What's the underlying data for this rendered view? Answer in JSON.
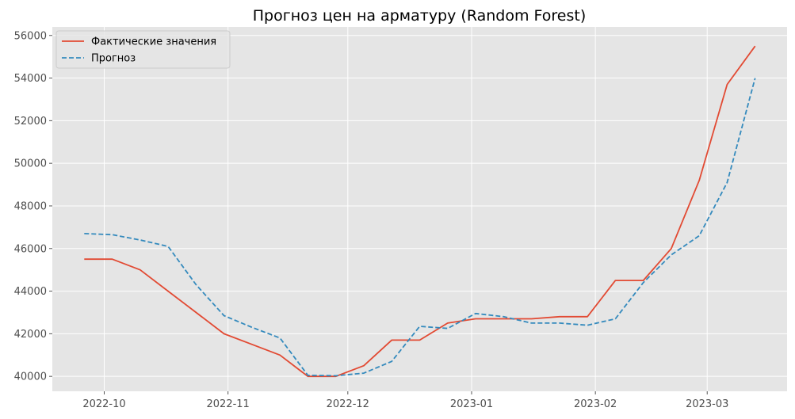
{
  "chart_data": {
    "type": "line",
    "title": "Прогноз цен на арматуру (Random Forest)",
    "xlabel": "",
    "ylabel": "",
    "x": [
      "2022-09-26",
      "2022-10-03",
      "2022-10-10",
      "2022-10-17",
      "2022-10-24",
      "2022-10-31",
      "2022-11-07",
      "2022-11-14",
      "2022-11-21",
      "2022-11-28",
      "2022-12-05",
      "2022-12-12",
      "2022-12-19",
      "2022-12-26",
      "2023-01-02",
      "2023-01-09",
      "2023-01-16",
      "2023-01-23",
      "2023-01-30",
      "2023-02-06",
      "2023-02-13",
      "2023-02-20",
      "2023-02-27",
      "2023-03-06",
      "2023-03-13"
    ],
    "series": [
      {
        "name": "Фактические значения",
        "color": "#e24a33",
        "style": "solid",
        "values": [
          45500,
          45500,
          45000,
          44000,
          43000,
          42000,
          41500,
          41000,
          40000,
          40000,
          40500,
          41700,
          41700,
          42500,
          42700,
          42700,
          42700,
          42800,
          42800,
          44500,
          44500,
          46000,
          49200,
          53700,
          55500
        ]
      },
      {
        "name": "Прогноз",
        "color": "#348abd",
        "style": "dashed",
        "values": [
          46700,
          46650,
          46400,
          46100,
          44300,
          42850,
          42300,
          41800,
          40050,
          40030,
          40150,
          40700,
          42350,
          42250,
          42950,
          42800,
          42500,
          42500,
          42400,
          42700,
          44400,
          45700,
          46600,
          49100,
          54000
        ]
      }
    ],
    "x_ticks": [
      "2022-10",
      "2022-11",
      "2022-12",
      "2023-01",
      "2023-02",
      "2023-03"
    ],
    "x_tick_dates": [
      "2022-10-01",
      "2022-11-01",
      "2022-12-01",
      "2023-01-01",
      "2023-02-01",
      "2023-03-01"
    ],
    "y_ticks": [
      40000,
      42000,
      44000,
      46000,
      48000,
      50000,
      52000,
      54000,
      56000
    ],
    "xlim": [
      "2022-09-18",
      "2023-03-21"
    ],
    "ylim": [
      39300,
      56400
    ],
    "grid": true,
    "legend_position": "top-left",
    "background": "#e5e5e5",
    "grid_color": "#ffffff"
  }
}
